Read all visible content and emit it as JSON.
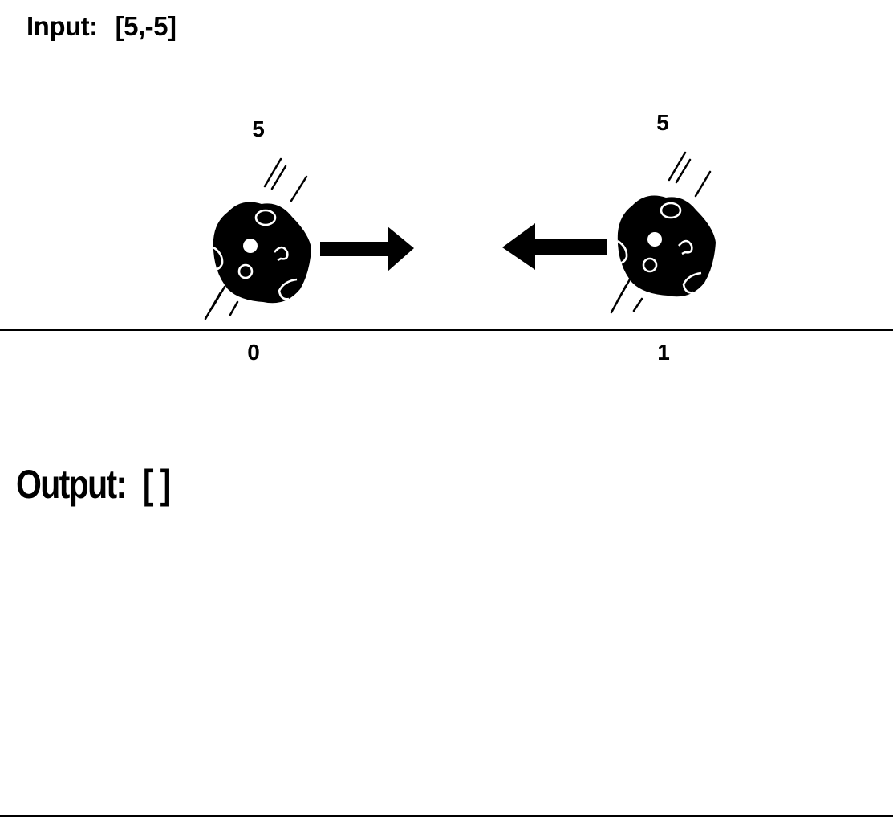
{
  "input": {
    "label": "Input:",
    "value": "[5,-5]"
  },
  "asteroids": [
    {
      "value_label": "5",
      "index_label": "0",
      "direction": "right"
    },
    {
      "value_label": "5",
      "index_label": "1",
      "direction": "left"
    }
  ],
  "output": {
    "label": "Output:",
    "value": "[ ]"
  },
  "icons": [
    "asteroid-icon",
    "arrow-right-icon",
    "arrow-left-icon"
  ]
}
